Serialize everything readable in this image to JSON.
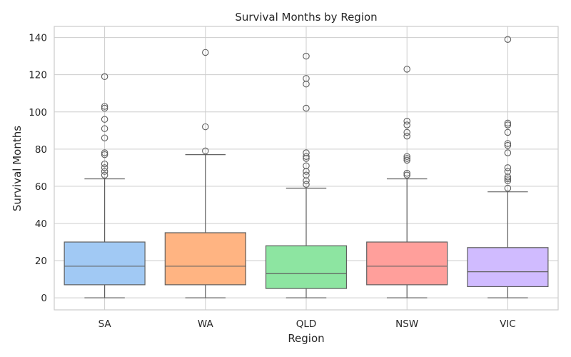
{
  "chart_data": {
    "type": "box",
    "title": "Survival Months by Region",
    "xlabel": "Region",
    "ylabel": "Survival Months",
    "ylim": [
      -6.5,
      146
    ],
    "yticks": [
      0,
      20,
      40,
      60,
      80,
      100,
      120,
      140
    ],
    "grid": true,
    "categories": [
      "SA",
      "WA",
      "QLD",
      "NSW",
      "VIC"
    ],
    "colors": [
      "#a1c9f4",
      "#ffb482",
      "#8de5a1",
      "#ff9f9b",
      "#d0bbff"
    ],
    "boxes": [
      {
        "category": "SA",
        "min": 0,
        "q1": 7,
        "median": 17,
        "q3": 30,
        "max": 64,
        "outliers": [
          66,
          68,
          70,
          72,
          77,
          78,
          86,
          91,
          96,
          102,
          103,
          119
        ]
      },
      {
        "category": "WA",
        "min": 0,
        "q1": 7,
        "median": 17,
        "q3": 35,
        "max": 77,
        "outliers": [
          79,
          92,
          132
        ]
      },
      {
        "category": "QLD",
        "min": 0,
        "q1": 5,
        "median": 13,
        "q3": 28,
        "max": 59,
        "outliers": [
          61,
          63,
          66,
          68,
          71,
          75,
          76,
          78,
          102,
          115,
          118,
          130
        ]
      },
      {
        "category": "NSW",
        "min": 0,
        "q1": 7,
        "median": 17,
        "q3": 30,
        "max": 64,
        "outliers": [
          66,
          67,
          74,
          75,
          76,
          87,
          89,
          93,
          95,
          123
        ]
      },
      {
        "category": "VIC",
        "min": 0,
        "q1": 6,
        "median": 14,
        "q3": 27,
        "max": 57,
        "outliers": [
          59,
          63,
          64,
          65,
          68,
          70,
          78,
          82,
          83,
          89,
          93,
          94,
          139
        ]
      }
    ]
  }
}
